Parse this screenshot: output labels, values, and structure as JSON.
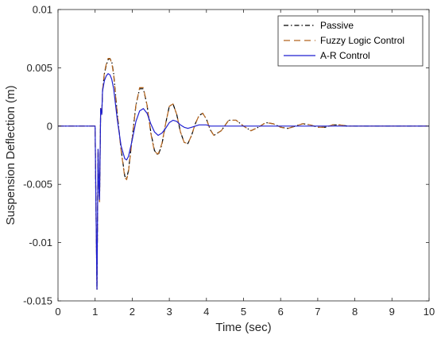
{
  "chart_data": {
    "type": "line",
    "title": "",
    "xlabel": "Time (sec)",
    "ylabel": "Suspension Deflection (m)",
    "xlim": [
      0,
      10
    ],
    "ylim": [
      -0.015,
      0.01
    ],
    "xticks": [
      "0",
      "1",
      "2",
      "3",
      "4",
      "5",
      "6",
      "7",
      "8",
      "9",
      "10"
    ],
    "yticks": [
      "0.01",
      "0.005",
      "0",
      "-0.005",
      "-0.01",
      "-0.015"
    ],
    "legend_position": "top-right",
    "grid": false,
    "series": [
      {
        "name": "Passive",
        "color": "#000000",
        "line_style": "dash-dot",
        "x": [
          0,
          1,
          1.02,
          1.05,
          1.08,
          1.1,
          1.12,
          1.15,
          1.18,
          1.2,
          1.25,
          1.3,
          1.35,
          1.4,
          1.45,
          1.5,
          1.6,
          1.7,
          1.8,
          1.85,
          1.9,
          2.0,
          2.1,
          2.2,
          2.3,
          2.4,
          2.5,
          2.6,
          2.7,
          2.8,
          2.9,
          3.0,
          3.1,
          3.2,
          3.3,
          3.4,
          3.5,
          3.6,
          3.7,
          3.8,
          3.9,
          4.0,
          4.1,
          4.2,
          4.4,
          4.6,
          4.8,
          5.0,
          5.2,
          5.4,
          5.6,
          5.8,
          6.0,
          6.2,
          6.4,
          6.6,
          6.8,
          7.0,
          7.2,
          7.4,
          7.6,
          7.8,
          8.0,
          8.5,
          9.0,
          9.5,
          10.0
        ],
        "y": [
          0,
          0,
          -0.006,
          -0.014,
          -0.002,
          -0.005,
          -0.0065,
          0.0015,
          0.001,
          0.003,
          0.0045,
          0.0052,
          0.0057,
          0.0058,
          0.0055,
          0.0045,
          0.001,
          -0.002,
          -0.0043,
          -0.0045,
          -0.0038,
          -0.001,
          0.0018,
          0.0032,
          0.0032,
          0.0018,
          -0.0005,
          -0.0021,
          -0.0025,
          -0.0016,
          0.0002,
          0.0017,
          0.0019,
          0.001,
          -0.0005,
          -0.0014,
          -0.0015,
          -0.0008,
          0.0002,
          0.0009,
          0.0011,
          0.0006,
          -0.0003,
          -0.0008,
          -0.0004,
          0.0005,
          0.0005,
          0.0,
          -0.0004,
          -0.0001,
          0.0003,
          0.0002,
          -0.0001,
          -0.0002,
          0.0,
          0.0002,
          0.0001,
          -0.0001,
          -0.0001,
          0.0001,
          0.0001,
          0.0,
          0.0,
          0.0,
          0.0,
          0.0,
          0.0
        ]
      },
      {
        "name": "Fuzzy Logic Control",
        "color": "#b5651d",
        "line_style": "dashed",
        "x": [
          0,
          1,
          1.02,
          1.05,
          1.08,
          1.1,
          1.12,
          1.15,
          1.18,
          1.2,
          1.25,
          1.3,
          1.35,
          1.4,
          1.45,
          1.5,
          1.6,
          1.7,
          1.8,
          1.85,
          1.9,
          2.0,
          2.1,
          2.2,
          2.3,
          2.4,
          2.5,
          2.6,
          2.7,
          2.8,
          2.9,
          3.0,
          3.1,
          3.2,
          3.3,
          3.4,
          3.5,
          3.6,
          3.7,
          3.8,
          3.9,
          4.0,
          4.1,
          4.2,
          4.4,
          4.6,
          4.8,
          5.0,
          5.2,
          5.4,
          5.6,
          5.8,
          6.0,
          6.2,
          6.4,
          6.6,
          6.8,
          7.0,
          7.2,
          7.4,
          7.6,
          7.8,
          8.0,
          8.5,
          9.0,
          9.5,
          10.0
        ],
        "y": [
          0,
          0,
          -0.006,
          -0.014,
          -0.002,
          -0.005,
          -0.0065,
          0.0015,
          0.001,
          0.003,
          0.0046,
          0.0053,
          0.0058,
          0.0058,
          0.0054,
          0.0044,
          0.0009,
          -0.0021,
          -0.0044,
          -0.0046,
          -0.0039,
          -0.0011,
          0.0018,
          0.0033,
          0.0033,
          0.0018,
          -0.0006,
          -0.0022,
          -0.0024,
          -0.0015,
          0.0002,
          0.0017,
          0.0019,
          0.001,
          -0.0005,
          -0.0014,
          -0.0015,
          -0.0008,
          0.0002,
          0.0009,
          0.0011,
          0.0006,
          -0.0003,
          -0.0008,
          -0.0004,
          0.0005,
          0.0005,
          0.0,
          -0.0004,
          -0.0001,
          0.0003,
          0.0002,
          -0.0001,
          -0.0002,
          0.0,
          0.0002,
          0.0001,
          -0.0001,
          -0.0001,
          0.0001,
          0.0001,
          0.0,
          0.0,
          0.0,
          0.0,
          0.0,
          0.0
        ]
      },
      {
        "name": "A-R Control",
        "color": "#1f1fd0",
        "line_style": "solid",
        "x": [
          0,
          1,
          1.02,
          1.05,
          1.08,
          1.1,
          1.12,
          1.15,
          1.18,
          1.2,
          1.25,
          1.3,
          1.35,
          1.4,
          1.45,
          1.5,
          1.6,
          1.7,
          1.8,
          1.85,
          1.9,
          2.0,
          2.1,
          2.2,
          2.3,
          2.4,
          2.5,
          2.6,
          2.7,
          2.8,
          2.9,
          3.0,
          3.1,
          3.2,
          3.3,
          3.4,
          3.5,
          3.6,
          3.7,
          3.8,
          3.9,
          4.0,
          4.1,
          4.2,
          4.4,
          4.6,
          4.8,
          5.0,
          5.5,
          6.0,
          6.5,
          7.0,
          8.0,
          9.0,
          10.0
        ],
        "y": [
          0,
          0,
          -0.006,
          -0.014,
          -0.002,
          -0.005,
          -0.0063,
          0.0015,
          0.001,
          0.003,
          0.0039,
          0.0043,
          0.0045,
          0.0044,
          0.004,
          0.0032,
          0.0005,
          -0.0017,
          -0.0028,
          -0.0029,
          -0.0026,
          -0.0012,
          0.0004,
          0.0013,
          0.0015,
          0.0011,
          0.0002,
          -0.0005,
          -0.0008,
          -0.0006,
          -0.0002,
          0.0003,
          0.0005,
          0.0004,
          0.0001,
          -0.0001,
          -0.0002,
          -0.0001,
          0.0,
          0.0001,
          0.0001,
          0.0001,
          0.0,
          0.0,
          0.0,
          0.0,
          0.0,
          0.0,
          0.0,
          0.0,
          0.0,
          0.0,
          0.0,
          0.0,
          0.0
        ]
      }
    ]
  }
}
